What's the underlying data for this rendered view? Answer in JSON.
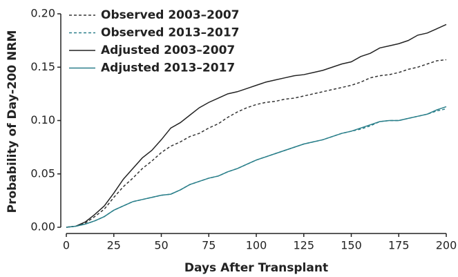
{
  "chart_data": {
    "type": "line",
    "xlabel": "Days After Transplant",
    "ylabel": "Probability of Day-200 NRM",
    "x": [
      0,
      5,
      10,
      15,
      20,
      25,
      30,
      35,
      40,
      45,
      50,
      55,
      60,
      65,
      70,
      75,
      80,
      85,
      90,
      95,
      100,
      105,
      110,
      115,
      120,
      125,
      130,
      135,
      140,
      145,
      150,
      155,
      160,
      165,
      170,
      175,
      180,
      185,
      190,
      195,
      200
    ],
    "series": [
      {
        "name": "Observed 2003–2007",
        "color": "#333333",
        "linestyle": "dashed",
        "values": [
          0,
          0.001,
          0.004,
          0.01,
          0.017,
          0.028,
          0.038,
          0.046,
          0.055,
          0.062,
          0.07,
          0.076,
          0.08,
          0.085,
          0.088,
          0.093,
          0.097,
          0.103,
          0.108,
          0.112,
          0.115,
          0.117,
          0.118,
          0.12,
          0.121,
          0.123,
          0.125,
          0.127,
          0.129,
          0.131,
          0.133,
          0.136,
          0.14,
          0.142,
          0.143,
          0.145,
          0.148,
          0.15,
          0.153,
          0.156,
          0.157
        ]
      },
      {
        "name": "Observed 2013–2017",
        "color": "#2a7f8a",
        "linestyle": "dashed",
        "values": [
          0,
          0.001,
          0.003,
          0.006,
          0.01,
          0.016,
          0.02,
          0.024,
          0.026,
          0.028,
          0.03,
          0.031,
          0.035,
          0.04,
          0.043,
          0.046,
          0.048,
          0.052,
          0.055,
          0.059,
          0.063,
          0.066,
          0.069,
          0.072,
          0.075,
          0.078,
          0.08,
          0.082,
          0.085,
          0.088,
          0.09,
          0.092,
          0.095,
          0.099,
          0.1,
          0.1,
          0.102,
          0.104,
          0.106,
          0.109,
          0.111
        ]
      },
      {
        "name": "Adjusted 2003–2007",
        "color": "#222222",
        "linestyle": "solid",
        "values": [
          0,
          0.001,
          0.005,
          0.012,
          0.02,
          0.032,
          0.045,
          0.055,
          0.065,
          0.072,
          0.082,
          0.093,
          0.098,
          0.105,
          0.112,
          0.117,
          0.121,
          0.125,
          0.127,
          0.13,
          0.133,
          0.136,
          0.138,
          0.14,
          0.142,
          0.143,
          0.145,
          0.147,
          0.15,
          0.153,
          0.155,
          0.16,
          0.163,
          0.168,
          0.17,
          0.172,
          0.175,
          0.18,
          0.182,
          0.186,
          0.19
        ]
      },
      {
        "name": "Adjusted 2013–2017",
        "color": "#2a7f8a",
        "linestyle": "solid",
        "values": [
          0,
          0.001,
          0.003,
          0.006,
          0.01,
          0.016,
          0.02,
          0.024,
          0.026,
          0.028,
          0.03,
          0.031,
          0.035,
          0.04,
          0.043,
          0.046,
          0.048,
          0.052,
          0.055,
          0.059,
          0.063,
          0.066,
          0.069,
          0.072,
          0.075,
          0.078,
          0.08,
          0.082,
          0.085,
          0.088,
          0.09,
          0.093,
          0.096,
          0.099,
          0.1,
          0.1,
          0.102,
          0.104,
          0.106,
          0.11,
          0.113
        ]
      }
    ],
    "xlim": [
      0,
      200
    ],
    "xticks": [
      0,
      25,
      50,
      75,
      100,
      125,
      150,
      175,
      200
    ],
    "ylim": [
      0,
      0.2
    ],
    "yticks": [
      {
        "value": 0,
        "label": "0.00"
      },
      {
        "value": 0.05,
        "label": "0.05"
      },
      {
        "value": 0.1,
        "label": "0.10"
      },
      {
        "value": 0.15,
        "label": "0.15"
      },
      {
        "value": 0.2,
        "label": "0.20"
      }
    ],
    "grid": false,
    "legend": "upper left"
  }
}
